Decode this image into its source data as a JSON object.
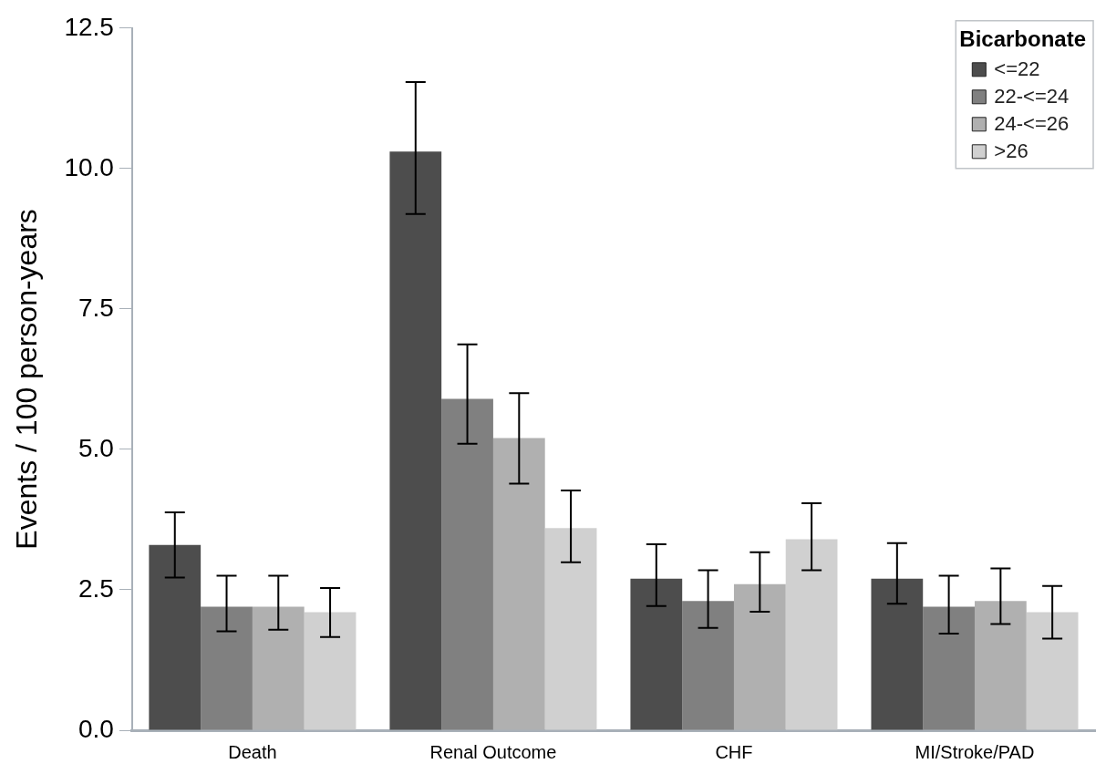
{
  "chart_data": {
    "type": "bar",
    "ylabel": "Events / 100 person-years",
    "legend_title": "Bicarbonate",
    "legend": "top right",
    "grid": false,
    "categories": [
      "Death",
      "Renal Outcome",
      "CHF",
      "MI/Stroke/PAD"
    ],
    "ylim": [
      0,
      12.5
    ],
    "yticks": [
      {
        "value": 0,
        "label": "0.0"
      },
      2.5,
      {
        "value": 5,
        "label": "5.0"
      },
      7.5,
      {
        "value": 10,
        "label": "10.0"
      },
      12.5
    ],
    "series": [
      {
        "name": "<=22",
        "color": "#4d4d4d",
        "values": [
          3.3,
          10.3,
          2.7,
          2.7
        ],
        "errors": [
          [
            2.72,
            3.88
          ],
          [
            9.19,
            11.54
          ],
          [
            2.21,
            3.31
          ],
          [
            2.25,
            3.33
          ]
        ]
      },
      {
        "name": "22-<=24",
        "color": "#808080",
        "values": [
          2.2,
          5.9,
          2.3,
          2.2
        ],
        "errors": [
          [
            1.76,
            2.75
          ],
          [
            5.1,
            6.87
          ],
          [
            1.82,
            2.85
          ],
          [
            1.72,
            2.75
          ]
        ]
      },
      {
        "name": "24-<=26",
        "color": "#b0b0b0",
        "values": [
          2.2,
          5.2,
          2.6,
          2.3
        ],
        "errors": [
          [
            1.79,
            2.75
          ],
          [
            4.39,
            6.0
          ],
          [
            2.11,
            3.17
          ],
          [
            1.89,
            2.88
          ]
        ]
      },
      {
        "name": ">26",
        "color": "#d0d0d0",
        "values": [
          2.1,
          3.6,
          3.4,
          2.1
        ],
        "errors": [
          [
            1.66,
            2.53
          ],
          [
            2.99,
            4.27
          ],
          [
            2.85,
            4.04
          ],
          [
            1.63,
            2.57
          ]
        ]
      }
    ]
  }
}
